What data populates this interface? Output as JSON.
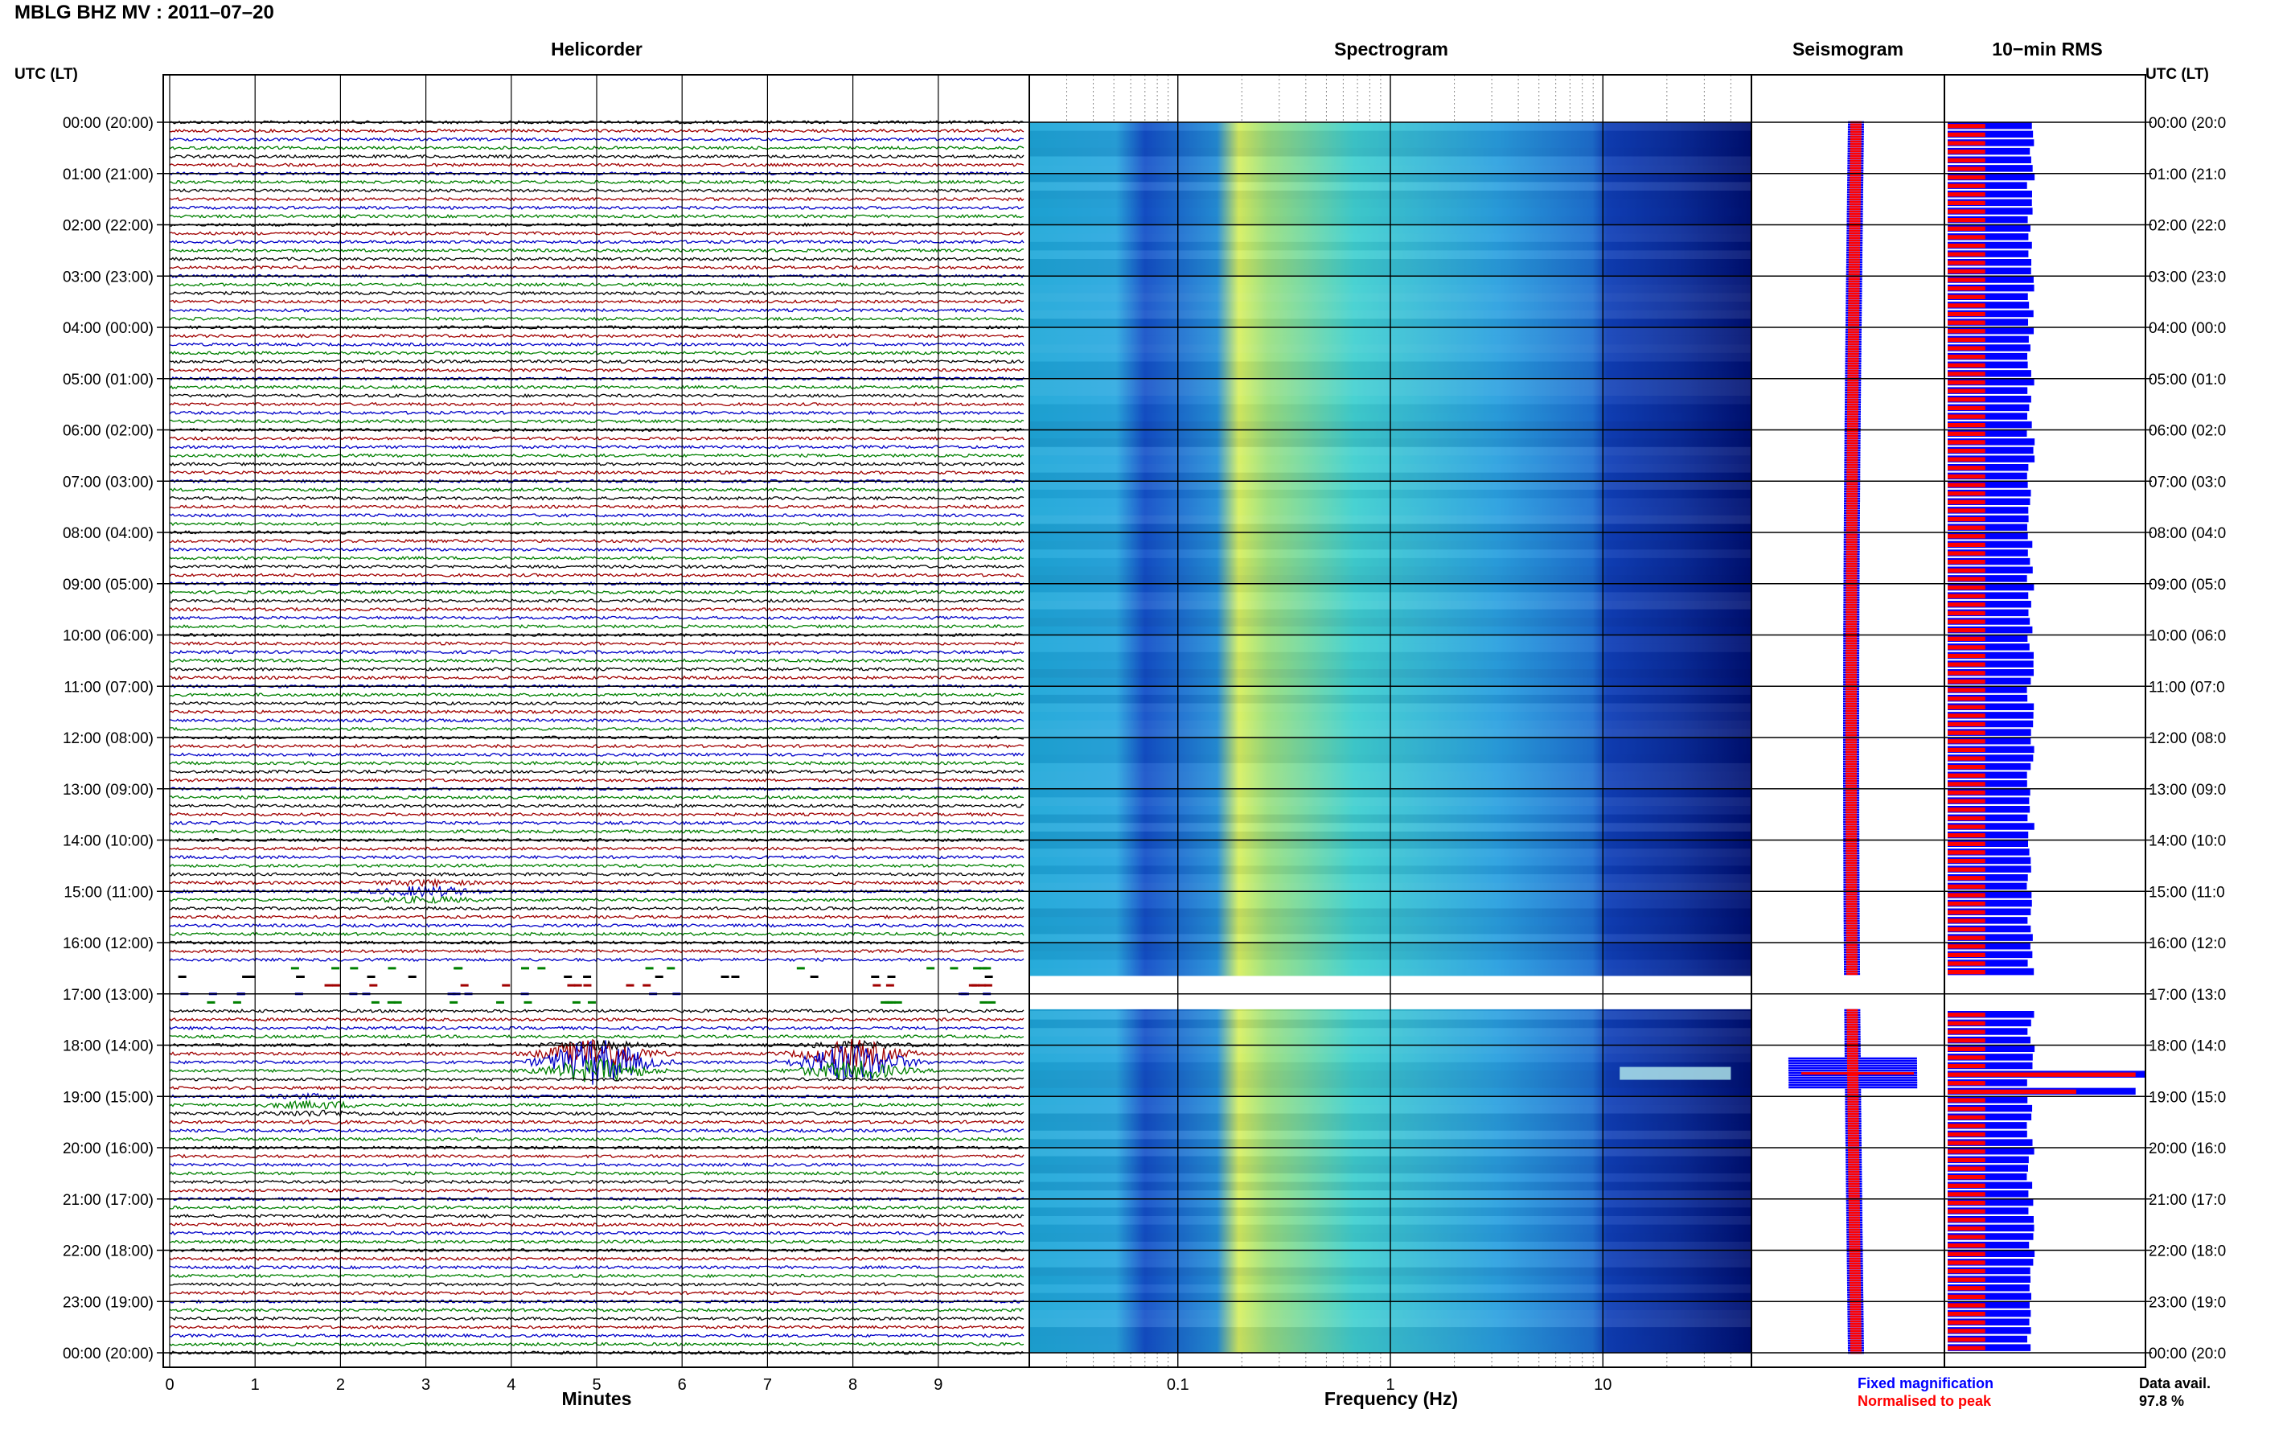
{
  "title": "MBLG BHZ MV : 2011–07–20",
  "panels": {
    "helicorder": "Helicorder",
    "spectrogram": "Spectrogram",
    "seismogram": "Seismogram",
    "rms": "10−min RMS"
  },
  "axis_header_left": "UTC (LT)",
  "axis_header_right": "UTC (LT)",
  "legend": {
    "fixed": "Fixed magnification",
    "normalised": "Normalised to peak"
  },
  "data_availability": {
    "label": "Data avail.",
    "value": "97.8 %"
  },
  "colors": {
    "trace_cycle": [
      "#000000",
      "#a00000",
      "#0000c8",
      "#008000"
    ],
    "fixed": "#0000ff",
    "normalised": "#ff0000",
    "spectrogram_low": "#001070",
    "spectrogram_high": "#e8ff40"
  },
  "chart_data": [
    {
      "type": "line",
      "title": "Helicorder",
      "xlabel": "Minutes",
      "xlim": [
        0,
        10
      ],
      "x_ticks": [
        "0",
        "1",
        "2",
        "3",
        "4",
        "5",
        "6",
        "7",
        "8",
        "9"
      ],
      "y_ticks": [
        "00:00 (20:00)",
        "01:00 (21:00)",
        "02:00 (22:00)",
        "03:00 (23:00)",
        "04:00 (00:00)",
        "05:00 (01:00)",
        "06:00 (02:00)",
        "07:00 (03:00)",
        "08:00 (04:00)",
        "09:00 (05:00)",
        "10:00 (06:00)",
        "11:00 (07:00)",
        "12:00 (08:00)",
        "13:00 (09:00)",
        "14:00 (10:00)",
        "15:00 (11:00)",
        "16:00 (12:00)",
        "17:00 (13:00)",
        "18:00 (14:00)",
        "19:00 (15:00)",
        "20:00 (16:00)",
        "21:00 (17:00)",
        "22:00 (18:00)",
        "23:00 (19:00)",
        "00:00 (20:00)"
      ],
      "y_ticks_right": [
        "00:00 (20:0",
        "01:00 (21:0",
        "02:00 (22:0",
        "03:00 (23:0",
        "04:00 (00:0",
        "05:00 (01:0",
        "06:00 (02:0",
        "07:00 (03:0",
        "08:00 (04:0",
        "09:00 (05:0",
        "10:00 (06:0",
        "11:00 (07:0",
        "12:00 (08:0",
        "13:00 (09:0",
        "14:00 (10:0",
        "15:00 (11:0",
        "16:00 (12:0",
        "17:00 (13:0",
        "18:00 (14:0",
        "19:00 (15:0",
        "20:00 (16:0",
        "21:00 (17:0",
        "22:00 (18:0",
        "23:00 (19:0",
        "00:00 (20:0"
      ],
      "lines_per_hour": 6,
      "hours": 24,
      "data_gap_hours": [
        16.4,
        17.2
      ],
      "events": [
        {
          "hour": 15.0,
          "minute": 3.0,
          "amplitude": 0.5
        },
        {
          "hour": 18.3,
          "minute": 5.0,
          "amplitude": 3.0
        },
        {
          "hour": 18.3,
          "minute": 8.0,
          "amplitude": 2.5
        },
        {
          "hour": 19.2,
          "minute": 1.7,
          "amplitude": 0.4
        }
      ]
    },
    {
      "type": "heatmap",
      "title": "Spectrogram",
      "xlabel": "Frequency (Hz)",
      "xscale": "log",
      "xlim": [
        0.02,
        50
      ],
      "x_ticks": [
        "0.1",
        "1",
        "10"
      ],
      "data_gap_hours": [
        16.65,
        17.3
      ],
      "peak_band_hz": [
        0.2,
        0.4
      ],
      "event_band": {
        "hour": 18.55,
        "freq_hz": [
          12,
          40
        ]
      }
    },
    {
      "type": "line",
      "title": "Seismogram",
      "series": [
        {
          "name": "Fixed magnification",
          "color": "#0000ff"
        },
        {
          "name": "Normalised to peak",
          "color": "#ff0000"
        }
      ],
      "event_hour": 18.55
    },
    {
      "type": "bar",
      "title": "10−min RMS",
      "bins_per_hour": 6,
      "series": [
        {
          "name": "Fixed magnification",
          "color": "#0000ff",
          "typical": 0.42
        },
        {
          "name": "Normalised to peak",
          "color": "#ff0000",
          "typical": 0.19
        }
      ],
      "peaks": [
        {
          "hour": 18.55,
          "fixed": 1.0,
          "normalised": 0.95
        },
        {
          "hour": 18.85,
          "fixed": 0.95,
          "normalised": 0.65
        }
      ]
    }
  ]
}
